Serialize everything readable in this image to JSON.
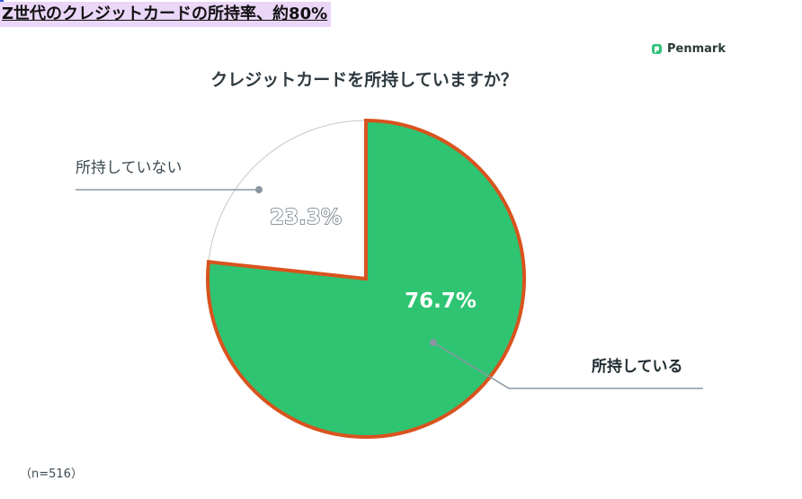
{
  "headline": "Z世代のクレジットカードの所持率、約80%",
  "brand": {
    "name": "Penmark",
    "icon": "penmark-logo-icon",
    "color": "#2ec27a"
  },
  "sample_note": "（n=516）",
  "colors": {
    "owned": "#2ec472",
    "not_owned": "#ffffff",
    "owned_outline": "#d9531e",
    "not_owned_outline": "#c8c8c8",
    "leader": "#8a96a3"
  },
  "chart_data": {
    "type": "pie",
    "title": "クレジットカードを所持していますか？",
    "slices": [
      {
        "label": "所持している",
        "value": 76.7,
        "value_label": "76.7%"
      },
      {
        "label": "所持していない",
        "value": 23.3,
        "value_label": "23.3%"
      }
    ],
    "unit": "%",
    "legend": "none"
  }
}
